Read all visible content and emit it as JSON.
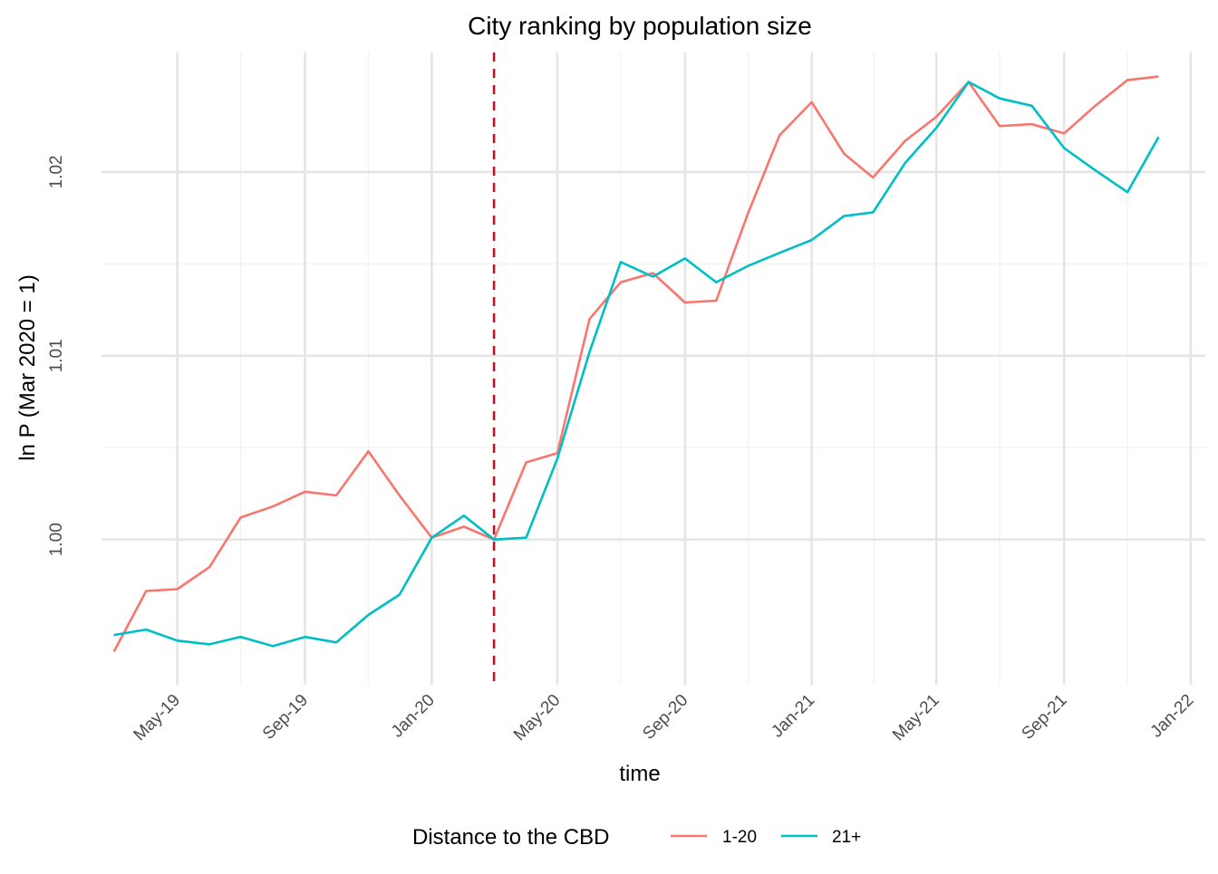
{
  "chart_data": {
    "type": "line",
    "title": "City ranking by population size",
    "xlabel": "time",
    "ylabel": "ln P (Mar 2020 = 1)",
    "x_ticks": [
      "May-19",
      "Sep-19",
      "Jan-20",
      "May-20",
      "Sep-20",
      "Jan-21",
      "May-21",
      "Sep-21",
      "Jan-22"
    ],
    "y_ticks": [
      "1.00",
      "1.01",
      "1.02"
    ],
    "ylim": [
      0.9921,
      1.0265
    ],
    "xlim": [
      "2019-02-17",
      "2022-01-15"
    ],
    "grid": true,
    "vline": {
      "x": "2020-03",
      "style": "dashed",
      "color": "#B2182B"
    },
    "x": [
      "2019-03",
      "2019-04",
      "2019-05",
      "2019-06",
      "2019-07",
      "2019-08",
      "2019-09",
      "2019-10",
      "2019-11",
      "2019-12",
      "2020-01",
      "2020-02",
      "2020-03",
      "2020-04",
      "2020-05",
      "2020-06",
      "2020-07",
      "2020-08",
      "2020-09",
      "2020-10",
      "2020-11",
      "2020-12",
      "2021-01",
      "2021-02",
      "2021-03",
      "2021-04",
      "2021-05",
      "2021-06",
      "2021-07",
      "2021-08",
      "2021-09",
      "2021-10",
      "2021-11",
      "2021-12"
    ],
    "series": [
      {
        "name": "1-20",
        "color": "#F8766D",
        "values": [
          0.9939,
          0.9972,
          0.9973,
          0.9985,
          1.0012,
          1.0018,
          1.0026,
          1.0024,
          1.0048,
          1.0024,
          1.0001,
          1.0007,
          1.0,
          1.0042,
          1.0047,
          1.012,
          1.014,
          1.0145,
          1.0129,
          1.013,
          1.0178,
          1.022,
          1.0238,
          1.021,
          1.0197,
          1.0217,
          1.023,
          1.0249,
          1.0225,
          1.0226,
          1.0221,
          1.0236,
          1.025,
          1.0252
        ]
      },
      {
        "name": "21+",
        "color": "#00BFC4",
        "values": [
          0.9948,
          0.9951,
          0.9945,
          0.9943,
          0.9947,
          0.9942,
          0.9947,
          0.9944,
          0.9959,
          0.997,
          1.0001,
          1.0013,
          1.0,
          1.0001,
          1.0044,
          1.0102,
          1.0151,
          1.0143,
          1.0153,
          1.014,
          1.0149,
          1.0156,
          1.0163,
          1.0176,
          1.0178,
          1.0205,
          1.0224,
          1.0249,
          1.024,
          1.0236,
          1.0213,
          1.0201,
          1.0189,
          1.0219
        ]
      }
    ],
    "legend": {
      "title": "Distance to the CBD",
      "position": "bottom"
    }
  }
}
